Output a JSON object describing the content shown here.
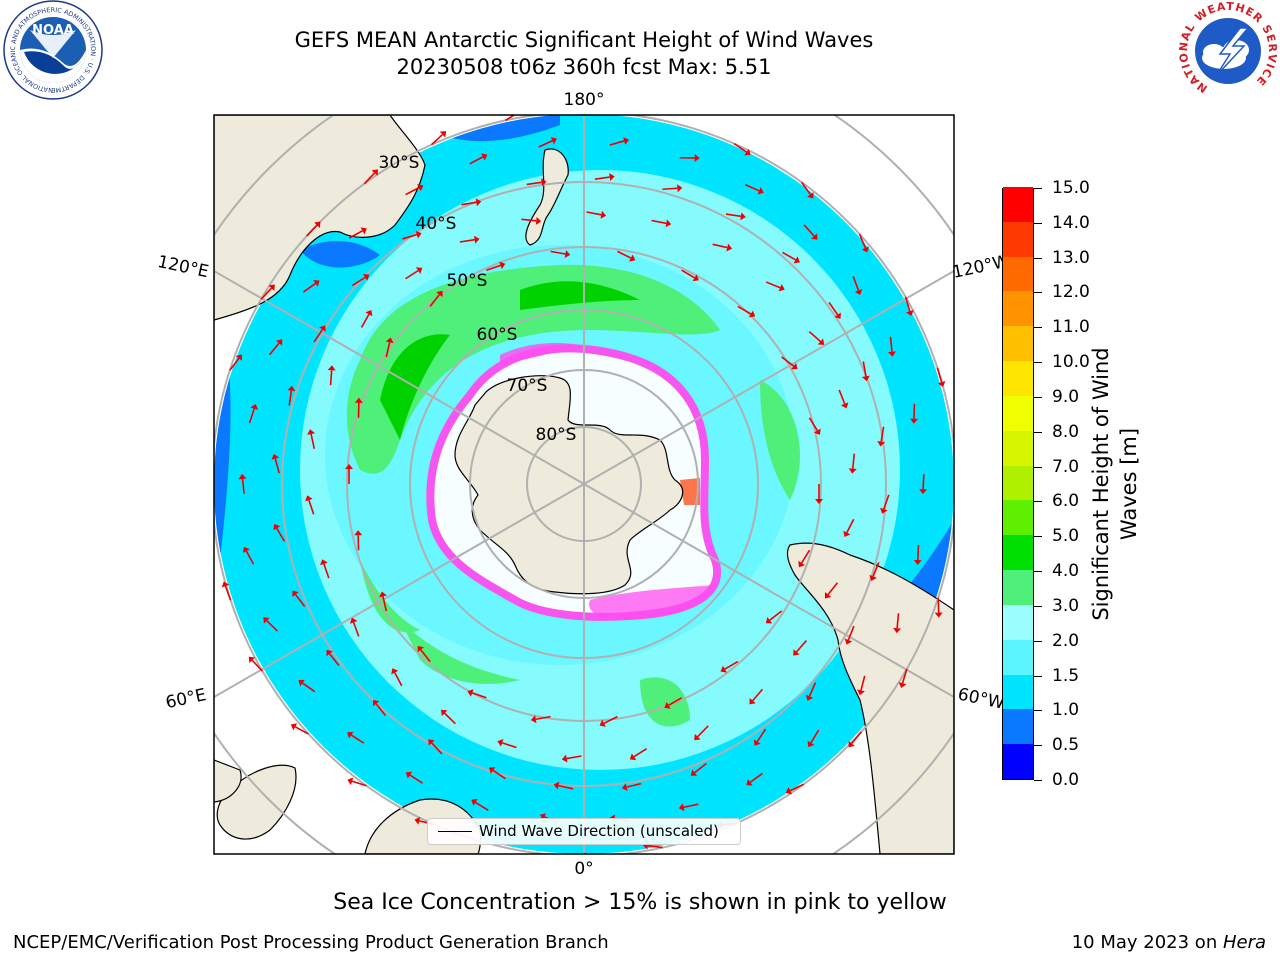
{
  "title": {
    "line1": "GEFS MEAN Antarctic Significant Height of Wind Waves",
    "line2": "20230508 t06z 360h fcst   Max: 5.51"
  },
  "logos": {
    "left_name": "NOAA",
    "left_ring": "NATIONAL OCEANIC AND ATMOSPHERIC ADMINISTRATION · U.S. DEPARTMENT OF COMMERCE",
    "right_ring": "NATIONAL WEATHER SERVICE"
  },
  "map": {
    "projection": "south-polar-stereographic",
    "lon_labels": [
      "180°",
      "120°E",
      "120°W",
      "60°E",
      "60°W",
      "0°"
    ],
    "lat_labels": [
      "30°S",
      "40°S",
      "50°S",
      "60°S",
      "70°S",
      "80°S"
    ],
    "legend_label": "Wind Wave Direction (unscaled)",
    "colors": {
      "land": "#efebdc",
      "sea_ice": "#ff4df0",
      "arrow": "#ee0000",
      "grid": "#b0b0b0"
    }
  },
  "colorbar": {
    "label": "Significant Height of Wind Waves [m]",
    "ticks": [
      "15.0",
      "14.0",
      "13.0",
      "12.0",
      "11.0",
      "10.0",
      "9.0",
      "8.0",
      "7.0",
      "6.0",
      "5.0",
      "4.0",
      "3.0",
      "2.0",
      "1.5",
      "1.0",
      "0.5",
      "0.0"
    ],
    "colors_bottom_to_top": [
      "#0000ff",
      "#0a78ff",
      "#00e5ff",
      "#5af5ff",
      "#9cfffe",
      "#4ef07a",
      "#00e000",
      "#5ef000",
      "#aef000",
      "#d8f500",
      "#f0ff00",
      "#ffe600",
      "#ffbe00",
      "#ff9400",
      "#ff6a00",
      "#ff3a00",
      "#ff0000"
    ]
  },
  "note": "Sea Ice Concentration > 15% is shown in pink to yellow",
  "footer": {
    "left": "NCEP/EMC/Verification Post Processing Product Generation Branch",
    "right_prefix": "10 May 2023 on ",
    "right_host": "Hera"
  }
}
